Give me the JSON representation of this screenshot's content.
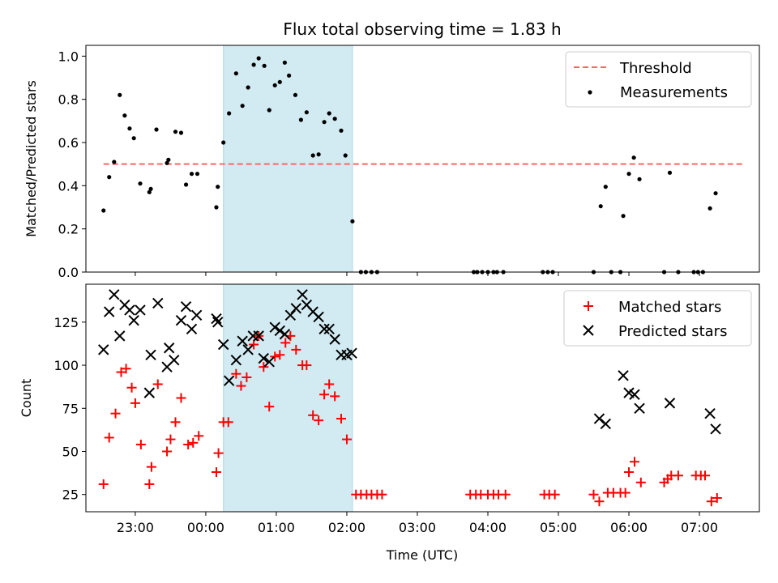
{
  "chart_data": {
    "type": "scatter",
    "title": "Flux total observing time = 1.83 h",
    "xlabel": "Time (UTC)",
    "x_unit": "hours",
    "xlim": [
      22.3,
      31.85
    ],
    "x_ticks": [
      23,
      24,
      25,
      26,
      27,
      28,
      29,
      30,
      31
    ],
    "x_tick_labels": [
      "23:00",
      "00:00",
      "01:00",
      "02:00",
      "03:00",
      "04:00",
      "05:00",
      "06:00",
      "07:00"
    ],
    "highlight_span": {
      "x0": 24.25,
      "x1": 26.08,
      "color": "#add8e6"
    },
    "panels": [
      {
        "ylabel": "Matched/Predicted stars",
        "ylim": [
          0,
          1.05
        ],
        "y_ticks": [
          0.0,
          0.2,
          0.4,
          0.6,
          0.8,
          1.0
        ],
        "y_tick_labels": [
          "0.0",
          "0.2",
          "0.4",
          "0.6",
          "0.8",
          "1.0"
        ],
        "legend_position": "top-right",
        "threshold": {
          "name": "Threshold",
          "value": 0.5,
          "x0": 22.55,
          "x1": 31.65,
          "color": "#ff6666"
        },
        "series": [
          {
            "name": "Measurements",
            "marker": "dot",
            "color": "#000000",
            "points": [
              [
                22.55,
                0.285
              ],
              [
                22.63,
                0.44
              ],
              [
                22.7,
                0.51
              ],
              [
                22.78,
                0.82
              ],
              [
                22.85,
                0.725
              ],
              [
                22.92,
                0.665
              ],
              [
                22.98,
                0.62
              ],
              [
                23.07,
                0.41
              ],
              [
                23.2,
                0.37
              ],
              [
                23.22,
                0.385
              ],
              [
                23.3,
                0.66
              ],
              [
                23.45,
                0.505
              ],
              [
                23.47,
                0.52
              ],
              [
                23.57,
                0.65
              ],
              [
                23.65,
                0.645
              ],
              [
                23.72,
                0.405
              ],
              [
                23.8,
                0.455
              ],
              [
                23.88,
                0.455
              ],
              [
                24.15,
                0.3
              ],
              [
                24.17,
                0.395
              ],
              [
                24.25,
                0.6
              ],
              [
                24.33,
                0.735
              ],
              [
                24.43,
                0.92
              ],
              [
                24.52,
                0.77
              ],
              [
                24.6,
                0.855
              ],
              [
                24.68,
                0.96
              ],
              [
                24.75,
                0.99
              ],
              [
                24.83,
                0.955
              ],
              [
                24.9,
                0.75
              ],
              [
                24.98,
                0.865
              ],
              [
                25.05,
                0.88
              ],
              [
                25.12,
                0.97
              ],
              [
                25.18,
                0.91
              ],
              [
                25.27,
                0.82
              ],
              [
                25.35,
                0.705
              ],
              [
                25.43,
                0.74
              ],
              [
                25.52,
                0.54
              ],
              [
                25.6,
                0.545
              ],
              [
                25.68,
                0.695
              ],
              [
                25.75,
                0.735
              ],
              [
                25.83,
                0.71
              ],
              [
                25.92,
                0.655
              ],
              [
                25.98,
                0.54
              ],
              [
                26.08,
                0.235
              ],
              [
                26.2,
                0
              ],
              [
                26.27,
                0
              ],
              [
                26.35,
                0
              ],
              [
                26.43,
                0
              ],
              [
                27.8,
                0
              ],
              [
                27.85,
                0
              ],
              [
                27.92,
                0
              ],
              [
                28.0,
                0
              ],
              [
                28.08,
                0
              ],
              [
                28.13,
                0
              ],
              [
                28.22,
                0
              ],
              [
                28.78,
                0
              ],
              [
                28.85,
                0
              ],
              [
                28.92,
                0
              ],
              [
                29.5,
                0
              ],
              [
                29.6,
                0.305
              ],
              [
                29.67,
                0.395
              ],
              [
                29.75,
                0
              ],
              [
                29.88,
                0
              ],
              [
                29.92,
                0.26
              ],
              [
                30.0,
                0.455
              ],
              [
                30.07,
                0.53
              ],
              [
                30.15,
                0.43
              ],
              [
                30.5,
                0
              ],
              [
                30.58,
                0.46
              ],
              [
                30.7,
                0
              ],
              [
                30.92,
                0
              ],
              [
                30.98,
                0
              ],
              [
                31.05,
                0
              ],
              [
                31.15,
                0.295
              ],
              [
                31.23,
                0.365
              ]
            ]
          }
        ]
      },
      {
        "ylabel": "Count",
        "ylim": [
          15,
          147
        ],
        "y_ticks": [
          25,
          50,
          75,
          100,
          125
        ],
        "y_tick_labels": [
          "25",
          "50",
          "75",
          "100",
          "125"
        ],
        "legend_position": "top-right",
        "series": [
          {
            "name": "Matched stars",
            "marker": "plus",
            "color": "#ff0000",
            "points": [
              [
                22.55,
                31
              ],
              [
                22.63,
                58
              ],
              [
                22.72,
                72
              ],
              [
                22.8,
                96
              ],
              [
                22.87,
                98
              ],
              [
                22.95,
                87
              ],
              [
                23.0,
                78
              ],
              [
                23.08,
                54
              ],
              [
                23.2,
                31
              ],
              [
                23.23,
                41
              ],
              [
                23.32,
                89
              ],
              [
                23.45,
                50
              ],
              [
                23.5,
                57
              ],
              [
                23.57,
                67
              ],
              [
                23.65,
                81
              ],
              [
                23.75,
                54
              ],
              [
                23.82,
                55
              ],
              [
                23.9,
                59
              ],
              [
                24.15,
                38
              ],
              [
                24.18,
                49
              ],
              [
                24.25,
                67
              ],
              [
                24.32,
                67
              ],
              [
                24.43,
                95
              ],
              [
                24.5,
                88
              ],
              [
                24.58,
                93
              ],
              [
                24.68,
                112
              ],
              [
                24.75,
                117
              ],
              [
                24.82,
                99
              ],
              [
                24.9,
                76
              ],
              [
                24.98,
                105
              ],
              [
                25.05,
                106
              ],
              [
                25.13,
                113
              ],
              [
                25.2,
                117
              ],
              [
                25.28,
                109
              ],
              [
                25.37,
                100
              ],
              [
                25.43,
                100
              ],
              [
                25.52,
                71
              ],
              [
                25.6,
                68
              ],
              [
                25.68,
                83
              ],
              [
                25.75,
                89
              ],
              [
                25.83,
                82
              ],
              [
                25.92,
                69
              ],
              [
                26.0,
                57
              ],
              [
                26.13,
                25
              ],
              [
                26.2,
                25
              ],
              [
                26.28,
                25
              ],
              [
                26.35,
                25
              ],
              [
                26.43,
                25
              ],
              [
                26.5,
                25
              ],
              [
                27.75,
                25
              ],
              [
                27.83,
                25
              ],
              [
                27.9,
                25
              ],
              [
                28.0,
                25
              ],
              [
                28.08,
                25
              ],
              [
                28.15,
                25
              ],
              [
                28.25,
                25
              ],
              [
                28.8,
                25
              ],
              [
                28.87,
                25
              ],
              [
                28.95,
                25
              ],
              [
                29.5,
                25
              ],
              [
                29.58,
                21
              ],
              [
                29.7,
                26
              ],
              [
                29.78,
                26
              ],
              [
                29.88,
                26
              ],
              [
                29.95,
                26
              ],
              [
                30.0,
                38
              ],
              [
                30.08,
                44
              ],
              [
                30.17,
                32
              ],
              [
                30.5,
                32
              ],
              [
                30.55,
                34
              ],
              [
                30.6,
                36
              ],
              [
                30.7,
                36
              ],
              [
                30.95,
                36
              ],
              [
                31.02,
                36
              ],
              [
                31.08,
                36
              ],
              [
                31.17,
                21
              ],
              [
                31.25,
                23
              ]
            ]
          },
          {
            "name": "Predicted stars",
            "marker": "x",
            "color": "#000000",
            "points": [
              [
                22.55,
                109
              ],
              [
                22.63,
                131
              ],
              [
                22.7,
                141
              ],
              [
                22.78,
                117
              ],
              [
                22.85,
                135
              ],
              [
                22.92,
                132
              ],
              [
                22.98,
                126
              ],
              [
                23.07,
                132
              ],
              [
                23.2,
                84
              ],
              [
                23.22,
                106
              ],
              [
                23.32,
                136
              ],
              [
                23.45,
                99
              ],
              [
                23.48,
                110
              ],
              [
                23.55,
                103
              ],
              [
                23.65,
                126
              ],
              [
                23.72,
                134
              ],
              [
                23.8,
                121
              ],
              [
                23.87,
                129
              ],
              [
                24.15,
                127
              ],
              [
                24.17,
                125
              ],
              [
                24.25,
                112
              ],
              [
                24.33,
                91
              ],
              [
                24.43,
                103
              ],
              [
                24.52,
                114
              ],
              [
                24.6,
                109
              ],
              [
                24.67,
                117
              ],
              [
                24.75,
                117
              ],
              [
                24.82,
                104
              ],
              [
                24.9,
                102
              ],
              [
                24.98,
                122
              ],
              [
                25.05,
                120
              ],
              [
                25.12,
                118
              ],
              [
                25.2,
                129
              ],
              [
                25.28,
                133
              ],
              [
                25.37,
                141
              ],
              [
                25.43,
                135
              ],
              [
                25.52,
                131
              ],
              [
                25.6,
                128
              ],
              [
                25.68,
                121
              ],
              [
                25.75,
                121
              ],
              [
                25.83,
                115
              ],
              [
                25.92,
                106
              ],
              [
                26.0,
                106
              ],
              [
                26.07,
                107
              ],
              [
                29.58,
                69
              ],
              [
                29.67,
                66
              ],
              [
                29.92,
                94
              ],
              [
                30.0,
                84
              ],
              [
                30.08,
                83
              ],
              [
                30.15,
                75
              ],
              [
                30.58,
                78
              ],
              [
                31.15,
                72
              ],
              [
                31.23,
                63
              ]
            ]
          }
        ]
      }
    ]
  }
}
